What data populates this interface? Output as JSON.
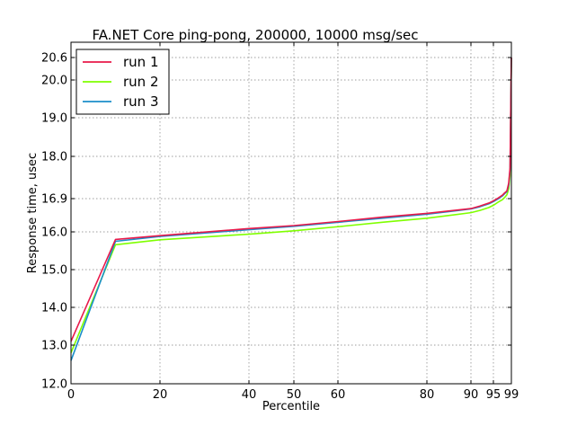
{
  "chart_data": {
    "type": "line",
    "title": "FA.NET Core ping-pong, 200000, 10000 msg/sec",
    "xlabel": "Percentile",
    "ylabel": "Response time, usec",
    "x_ticks": [
      {
        "value": 0,
        "label": "0"
      },
      {
        "value": 20,
        "label": "20"
      },
      {
        "value": 40,
        "label": "40"
      },
      {
        "value": 50,
        "label": "50"
      },
      {
        "value": 60,
        "label": "60"
      },
      {
        "value": 80,
        "label": "80"
      },
      {
        "value": 90,
        "label": "90"
      },
      {
        "value": 95,
        "label": "95"
      },
      {
        "value": 99,
        "label": "99"
      }
    ],
    "y_ticks": [
      {
        "value": 12.0,
        "label": "12.0"
      },
      {
        "value": 13.0,
        "label": "13.0"
      },
      {
        "value": 14.0,
        "label": "14.0"
      },
      {
        "value": 15.0,
        "label": "15.0"
      },
      {
        "value": 16.0,
        "label": "16.0"
      },
      {
        "value": 16.9,
        "label": "16.9"
      },
      {
        "value": 18.0,
        "label": "18.0"
      },
      {
        "value": 19.0,
        "label": "19.0"
      },
      {
        "value": 20.0,
        "label": "20.0"
      },
      {
        "value": 20.6,
        "label": "20.6"
      }
    ],
    "xlim": [
      0,
      99
    ],
    "ylim": [
      12.0,
      20.6
    ],
    "x_scale": "nonlinear (percentile scale, tail stretched)",
    "grid": true,
    "legend_position": "top-left",
    "series": [
      {
        "name": "run 1",
        "color": "#e8194a",
        "x": [
          0,
          10,
          20,
          40,
          50,
          60,
          70,
          80,
          90,
          92,
          94,
          95,
          96,
          97,
          97.5,
          98,
          98.4,
          98.7,
          99
        ],
        "y": [
          13.1,
          15.8,
          15.9,
          16.09,
          16.17,
          16.28,
          16.4,
          16.5,
          16.63,
          16.7,
          16.78,
          16.84,
          16.91,
          16.99,
          17.05,
          17.1,
          17.3,
          17.7,
          20.6
        ]
      },
      {
        "name": "run 2",
        "color": "#7fff00",
        "x": [
          0,
          10,
          20,
          40,
          50,
          60,
          70,
          80,
          90,
          92,
          94,
          95,
          96,
          97,
          97.5,
          98,
          98.4,
          98.7,
          99
        ],
        "y": [
          12.8,
          15.66,
          15.79,
          15.94,
          16.03,
          16.14,
          16.26,
          16.37,
          16.52,
          16.58,
          16.66,
          16.72,
          16.8,
          16.87,
          16.93,
          17.0,
          17.15,
          17.5,
          20.6
        ]
      },
      {
        "name": "run 3",
        "color": "#1b8ec9",
        "x": [
          0,
          10,
          20,
          40,
          50,
          60,
          70,
          80,
          90,
          92,
          94,
          95,
          96,
          97,
          97.5,
          98,
          98.4,
          98.7,
          99
        ],
        "y": [
          12.6,
          15.75,
          15.88,
          16.06,
          16.15,
          16.26,
          16.37,
          16.48,
          16.62,
          16.68,
          16.76,
          16.82,
          16.89,
          16.97,
          17.03,
          17.08,
          17.25,
          17.65,
          20.6
        ]
      }
    ]
  }
}
